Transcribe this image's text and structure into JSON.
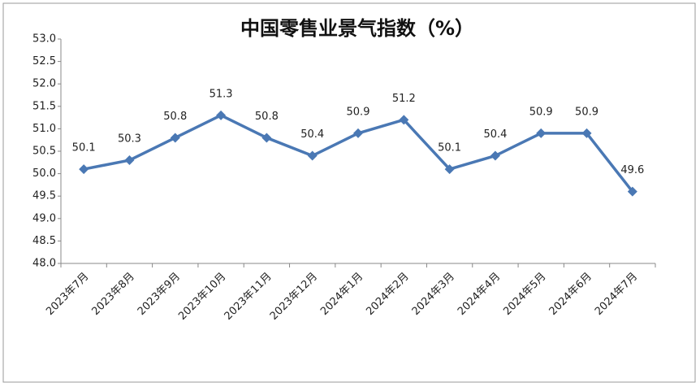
{
  "chart_data": {
    "type": "line",
    "title": "中国零售业景气指数（%）",
    "categories": [
      "2023年7月",
      "2023年8月",
      "2023年9月",
      "2023年10月",
      "2023年11月",
      "2023年12月",
      "2024年1月",
      "2024年2月",
      "2024年3月",
      "2024年4月",
      "2024年5月",
      "2024年6月",
      "2024年7月"
    ],
    "values": [
      50.1,
      50.3,
      50.8,
      51.3,
      50.8,
      50.4,
      50.9,
      51.2,
      50.1,
      50.4,
      50.9,
      50.9,
      49.6
    ],
    "color": "#4a78b4",
    "ylim": [
      48,
      53
    ],
    "yticks": [
      {
        "value": 48,
        "label": "48.0"
      },
      48.5,
      {
        "value": 49,
        "label": "49.0"
      },
      49.5,
      {
        "value": 50,
        "label": "50.0"
      },
      50.5,
      {
        "value": 51,
        "label": "51.0"
      },
      51.5,
      {
        "value": 52,
        "label": "52.0"
      },
      52.5,
      {
        "value": 53,
        "label": "53.0"
      }
    ],
    "grid": false
  }
}
